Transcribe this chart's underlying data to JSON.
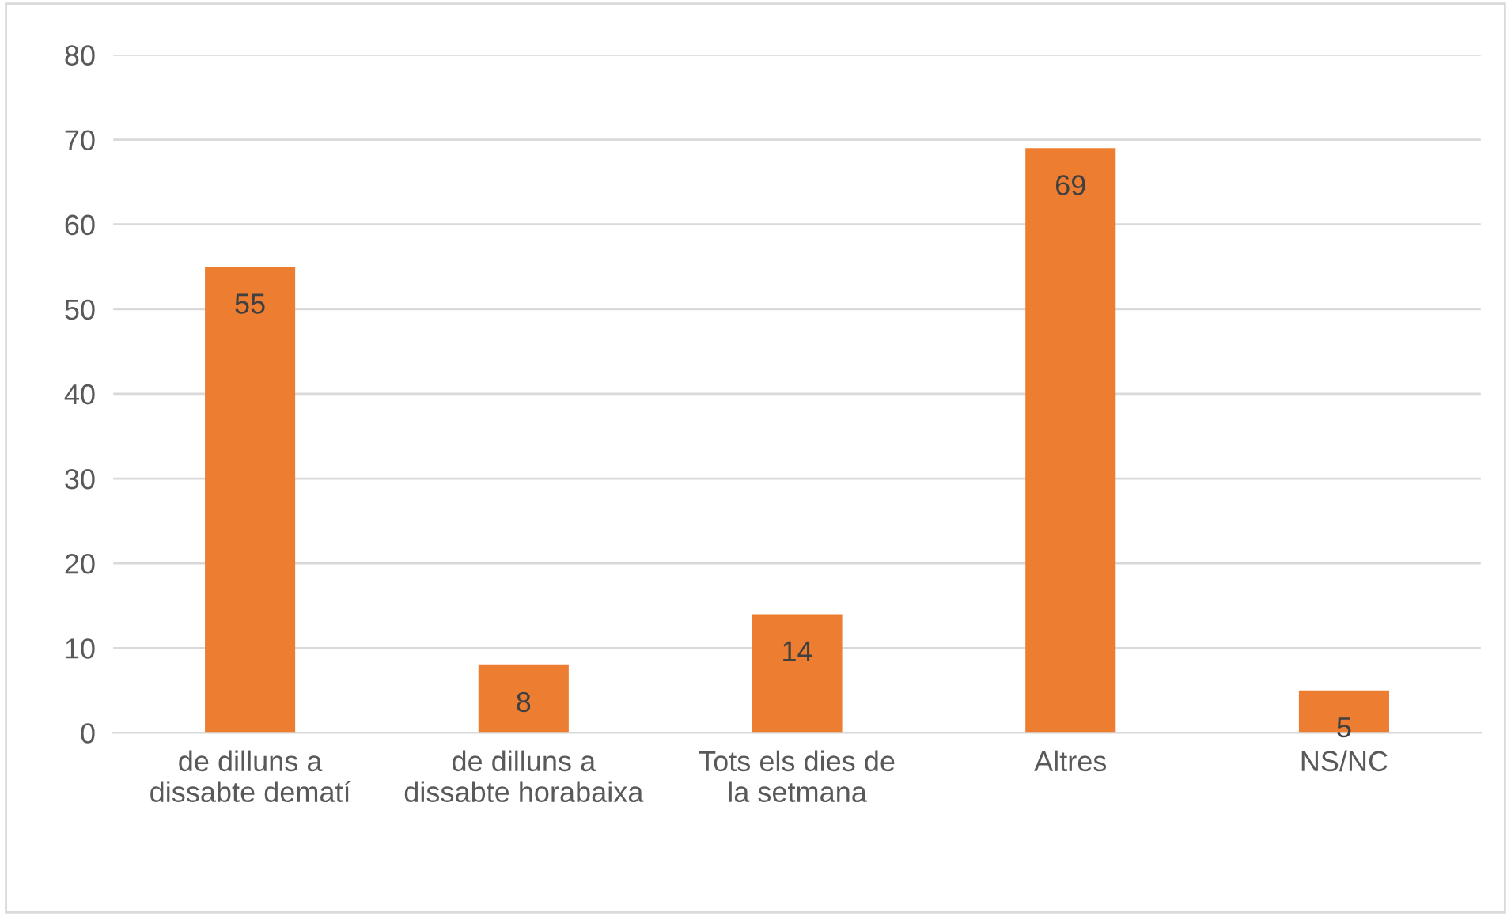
{
  "chart_data": {
    "type": "bar",
    "categories": [
      "de dilluns a dissabte dematí",
      "de dilluns a dissabte horabaixa",
      "Tots els dies de la setmana",
      "Altres",
      "NS/NC"
    ],
    "values": [
      55,
      8,
      14,
      69,
      5
    ],
    "color": "#ed7d31",
    "ylim": [
      0,
      80
    ],
    "yticks": [
      0,
      10,
      20,
      30,
      40,
      50,
      60,
      70,
      80
    ],
    "grid": "y",
    "data_labels": true
  }
}
